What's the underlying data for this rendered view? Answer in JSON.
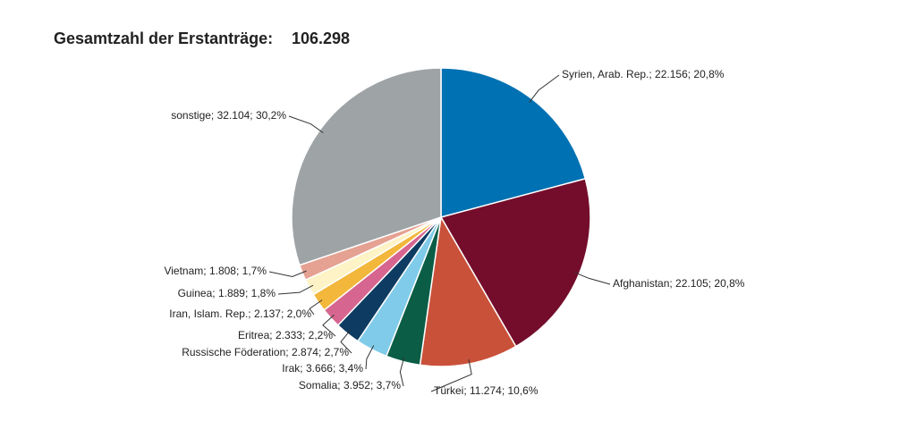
{
  "chart_data": {
    "type": "pie",
    "title": "Gesamtzahl der Erstanträge:",
    "total": {
      "value": 106298,
      "label": "106.298"
    },
    "categories": [
      "Syrien, Arab. Rep.",
      "Afghanistan",
      "Türkei",
      "Somalia",
      "Irak",
      "Russische Föderation",
      "Eritrea",
      "Iran, Islam. Rep.",
      "Guinea",
      "Vietnam",
      "sonstige"
    ],
    "values": [
      22156,
      22105,
      11274,
      3952,
      3666,
      2874,
      2333,
      2137,
      1889,
      1808,
      32104
    ],
    "value_labels": [
      "Syrien, Arab. Rep.; 22.156; 20,8%",
      "Afghanistan; 22.105; 20,8%",
      "Türkei; 11.274; 10,6%",
      "Somalia; 3.952; 3,7%",
      "Irak; 3.666; 3,4%",
      "Russische Föderation; 2.874; 2,7%",
      "Eritrea; 2.333; 2,2%",
      "Iran, Islam. Rep.; 2.137; 2,0%",
      "Guinea; 1.889; 1,8%",
      "Vietnam; 1.808; 1,7%",
      "sonstige; 32.104; 30,2%"
    ],
    "colors": [
      "#0071b2",
      "#740d2b",
      "#c9513a",
      "#0b5d46",
      "#80cbe9",
      "#0e3b62",
      "#d6658f",
      "#f2b73b",
      "#fdf3c6",
      "#e5a191",
      "#9ea3a6"
    ]
  }
}
